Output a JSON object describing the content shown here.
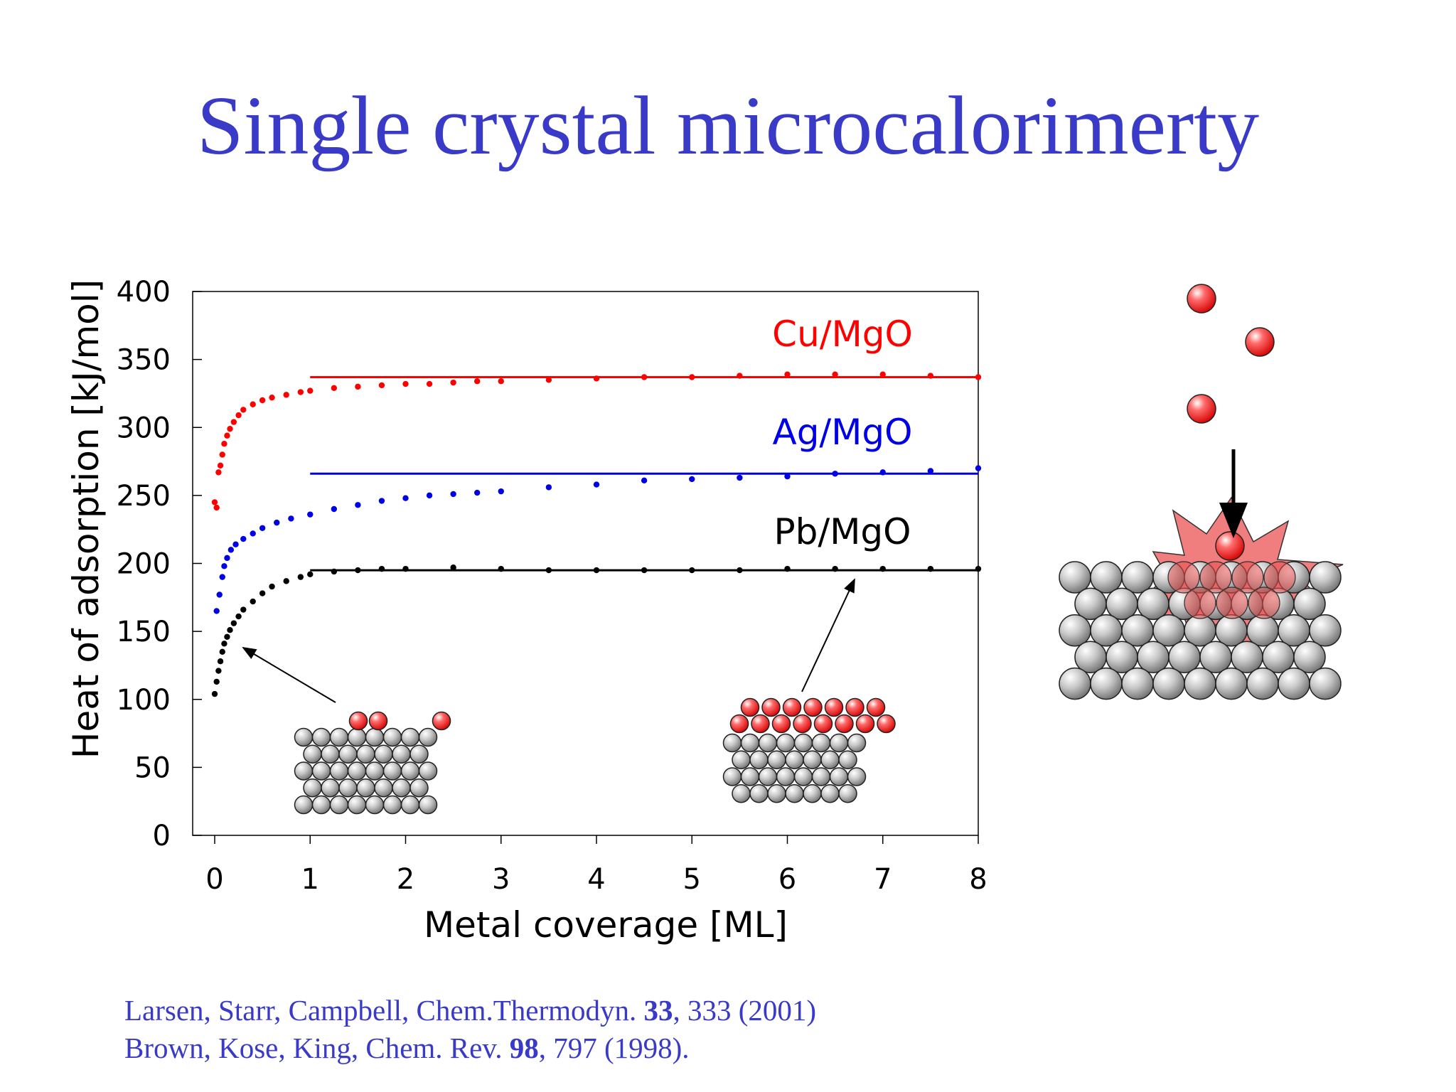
{
  "slide": {
    "title": "Single crystal microcalorimerty",
    "references": [
      {
        "pre": "Larsen, Starr, Campbell, Chem.Thermodyn. ",
        "vol": "33",
        "post": ", 333 (2001)"
      },
      {
        "pre": "Brown, Kose, King, Chem. Rev. ",
        "vol": "98",
        "post": ", 797 (1998)."
      }
    ]
  },
  "colors": {
    "title": "#3a3ac8",
    "cu": "#ff0000",
    "ag": "#0000e6",
    "pb": "#000000",
    "sphere_gray": "#c8c8c8",
    "sphere_red": "#ff4040",
    "burst": "#f07070"
  },
  "chart_data": {
    "type": "scatter",
    "xlabel": "Metal coverage [ML]",
    "ylabel": "Heat of adsorption [kJ/mol]",
    "xlim": [
      0,
      8
    ],
    "ylim": [
      0,
      400
    ],
    "xticks": [
      0,
      1,
      2,
      3,
      4,
      5,
      6,
      7,
      8
    ],
    "yticks": [
      0,
      50,
      100,
      150,
      200,
      250,
      300,
      350,
      400
    ],
    "grid": false,
    "series": [
      {
        "name": "Cu/MgO",
        "color": "#ff0000",
        "plateau": 337,
        "plateau_range": [
          1,
          8
        ],
        "points": [
          [
            0.0,
            245
          ],
          [
            0.02,
            241
          ],
          [
            0.04,
            267
          ],
          [
            0.06,
            272
          ],
          [
            0.08,
            280
          ],
          [
            0.1,
            288
          ],
          [
            0.13,
            294
          ],
          [
            0.16,
            299
          ],
          [
            0.2,
            304
          ],
          [
            0.25,
            309
          ],
          [
            0.3,
            313
          ],
          [
            0.4,
            317
          ],
          [
            0.5,
            320
          ],
          [
            0.6,
            322
          ],
          [
            0.75,
            324
          ],
          [
            0.9,
            326
          ],
          [
            1.0,
            327
          ],
          [
            1.25,
            329
          ],
          [
            1.5,
            330
          ],
          [
            1.75,
            331
          ],
          [
            2.0,
            332
          ],
          [
            2.25,
            332
          ],
          [
            2.5,
            333
          ],
          [
            2.75,
            334
          ],
          [
            3.0,
            334
          ],
          [
            3.5,
            335
          ],
          [
            4.0,
            336
          ],
          [
            4.5,
            337
          ],
          [
            5.0,
            337
          ],
          [
            5.5,
            338
          ],
          [
            6.0,
            339
          ],
          [
            6.5,
            339
          ],
          [
            7.0,
            339
          ],
          [
            7.5,
            338
          ],
          [
            8.0,
            337
          ]
        ]
      },
      {
        "name": "Ag/MgO",
        "color": "#0000e6",
        "plateau": 266,
        "plateau_range": [
          1,
          8
        ],
        "points": [
          [
            0.02,
            165
          ],
          [
            0.05,
            177
          ],
          [
            0.08,
            190
          ],
          [
            0.1,
            198
          ],
          [
            0.13,
            204
          ],
          [
            0.17,
            210
          ],
          [
            0.22,
            214
          ],
          [
            0.3,
            218
          ],
          [
            0.4,
            222
          ],
          [
            0.5,
            226
          ],
          [
            0.65,
            230
          ],
          [
            0.8,
            233
          ],
          [
            1.0,
            236
          ],
          [
            1.25,
            240
          ],
          [
            1.5,
            243
          ],
          [
            1.75,
            246
          ],
          [
            2.0,
            248
          ],
          [
            2.25,
            250
          ],
          [
            2.5,
            251
          ],
          [
            2.75,
            252
          ],
          [
            3.0,
            253
          ],
          [
            3.5,
            256
          ],
          [
            4.0,
            258
          ],
          [
            4.5,
            261
          ],
          [
            5.0,
            262
          ],
          [
            5.5,
            263
          ],
          [
            6.0,
            264
          ],
          [
            6.5,
            266
          ],
          [
            7.0,
            267
          ],
          [
            7.5,
            268
          ],
          [
            8.0,
            270
          ]
        ]
      },
      {
        "name": "Pb/MgO",
        "color": "#000000",
        "plateau": 195,
        "plateau_range": [
          1,
          8
        ],
        "points": [
          [
            0.0,
            104
          ],
          [
            0.02,
            113
          ],
          [
            0.04,
            121
          ],
          [
            0.06,
            128
          ],
          [
            0.08,
            135
          ],
          [
            0.1,
            141
          ],
          [
            0.13,
            146
          ],
          [
            0.16,
            151
          ],
          [
            0.2,
            156
          ],
          [
            0.25,
            161
          ],
          [
            0.3,
            166
          ],
          [
            0.4,
            172
          ],
          [
            0.5,
            178
          ],
          [
            0.6,
            183
          ],
          [
            0.75,
            187
          ],
          [
            0.9,
            190
          ],
          [
            1.0,
            192
          ],
          [
            1.25,
            194
          ],
          [
            1.5,
            195
          ],
          [
            1.75,
            196
          ],
          [
            2.0,
            196
          ],
          [
            2.5,
            197
          ],
          [
            3.0,
            196
          ],
          [
            3.5,
            195
          ],
          [
            4.0,
            195
          ],
          [
            4.5,
            195
          ],
          [
            5.0,
            195
          ],
          [
            5.5,
            195
          ],
          [
            6.0,
            196
          ],
          [
            6.5,
            196
          ],
          [
            7.0,
            196
          ],
          [
            7.5,
            196
          ],
          [
            8.0,
            196
          ]
        ]
      }
    ]
  }
}
